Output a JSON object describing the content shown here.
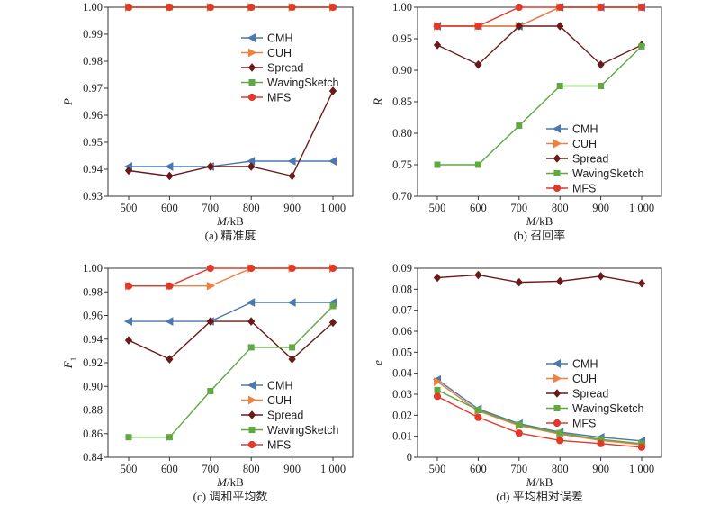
{
  "chart_data": [
    {
      "type": "line",
      "caption": "(a) 精准度",
      "xlabel": "M/kB",
      "ylabel": "P",
      "x": [
        "500",
        "600",
        "700",
        "800",
        "900",
        "1 000"
      ],
      "ylim": [
        0.93,
        1.0
      ],
      "yticks": [
        "0.93",
        "0.94",
        "0.95",
        "0.96",
        "0.97",
        "0.98",
        "0.99",
        "1.00"
      ],
      "grid": false,
      "legend_position": "center-right",
      "series": [
        {
          "name": "CMH",
          "color": "#4a78b0",
          "marker": "triangle-left",
          "values": [
            0.941,
            0.941,
            0.941,
            0.943,
            0.943,
            0.943
          ]
        },
        {
          "name": "CUH",
          "color": "#f08040",
          "marker": "triangle-right",
          "values": [
            1.0,
            1.0,
            1.0,
            1.0,
            1.0,
            1.0
          ]
        },
        {
          "name": "Spread",
          "color": "#6b1a1a",
          "marker": "diamond",
          "values": [
            0.9395,
            0.9375,
            0.941,
            0.941,
            0.9375,
            0.969
          ]
        },
        {
          "name": "WavingSketch",
          "color": "#60a840",
          "marker": "square",
          "values": [
            1.0,
            1.0,
            1.0,
            1.0,
            1.0,
            1.0
          ]
        },
        {
          "name": "MFS",
          "color": "#e03a2a",
          "marker": "circle",
          "values": [
            1.0,
            1.0,
            1.0,
            1.0,
            1.0,
            1.0
          ]
        }
      ]
    },
    {
      "type": "line",
      "caption": "(b) 召回率",
      "xlabel": "M/kB",
      "ylabel": "R",
      "x": [
        "500",
        "600",
        "700",
        "800",
        "900",
        "1 000"
      ],
      "ylim": [
        0.7,
        1.0
      ],
      "yticks": [
        "0.70",
        "0.75",
        "0.80",
        "0.85",
        "0.90",
        "0.95",
        "1.00"
      ],
      "grid": false,
      "legend_position": "bottom-right",
      "series": [
        {
          "name": "CMH",
          "color": "#4a78b0",
          "marker": "triangle-left",
          "values": [
            0.97,
            0.97,
            0.97,
            1.0,
            1.0,
            1.0
          ]
        },
        {
          "name": "CUH",
          "color": "#f08040",
          "marker": "triangle-right",
          "values": [
            0.97,
            0.97,
            0.97,
            1.0,
            1.0,
            1.0
          ]
        },
        {
          "name": "Spread",
          "color": "#6b1a1a",
          "marker": "diamond",
          "values": [
            0.94,
            0.909,
            0.97,
            0.97,
            0.909,
            0.94
          ]
        },
        {
          "name": "WavingSketch",
          "color": "#60a840",
          "marker": "square",
          "values": [
            0.75,
            0.75,
            0.812,
            0.875,
            0.875,
            0.938
          ]
        },
        {
          "name": "MFS",
          "color": "#e03a2a",
          "marker": "circle",
          "values": [
            0.97,
            0.97,
            1.0,
            1.0,
            1.0,
            1.0
          ]
        }
      ]
    },
    {
      "type": "line",
      "caption": "(c) 调和平均数",
      "xlabel": "M/kB",
      "ylabel": "F1",
      "x": [
        "500",
        "600",
        "700",
        "800",
        "900",
        "1 000"
      ],
      "ylim": [
        0.84,
        1.0
      ],
      "yticks": [
        "0.84",
        "0.86",
        "0.88",
        "0.90",
        "0.92",
        "0.94",
        "0.96",
        "0.98",
        "1.00"
      ],
      "grid": false,
      "legend_position": "bottom-right",
      "series": [
        {
          "name": "CMH",
          "color": "#4a78b0",
          "marker": "triangle-left",
          "values": [
            0.955,
            0.955,
            0.955,
            0.971,
            0.971,
            0.971
          ]
        },
        {
          "name": "CUH",
          "color": "#f08040",
          "marker": "triangle-right",
          "values": [
            0.985,
            0.985,
            0.985,
            1.0,
            1.0,
            1.0
          ]
        },
        {
          "name": "Spread",
          "color": "#6b1a1a",
          "marker": "diamond",
          "values": [
            0.939,
            0.923,
            0.955,
            0.955,
            0.923,
            0.954
          ]
        },
        {
          "name": "WavingSketch",
          "color": "#60a840",
          "marker": "square",
          "values": [
            0.857,
            0.857,
            0.896,
            0.933,
            0.933,
            0.968
          ]
        },
        {
          "name": "MFS",
          "color": "#e03a2a",
          "marker": "circle",
          "values": [
            0.985,
            0.985,
            1.0,
            1.0,
            1.0,
            1.0
          ]
        }
      ]
    },
    {
      "type": "line",
      "caption": "(d) 平均相对误差",
      "xlabel": "M/kB",
      "ylabel": "e",
      "x": [
        "500",
        "600",
        "700",
        "800",
        "900",
        "1 000"
      ],
      "ylim": [
        0,
        0.09
      ],
      "yticks": [
        "0",
        "0.01",
        "0.02",
        "0.03",
        "0.04",
        "0.05",
        "0.06",
        "0.07",
        "0.08",
        "0.09"
      ],
      "grid": false,
      "legend_position": "center-right",
      "series": [
        {
          "name": "CMH",
          "color": "#4a78b0",
          "marker": "triangle-left",
          "values": [
            0.037,
            0.023,
            0.016,
            0.012,
            0.0095,
            0.0078
          ]
        },
        {
          "name": "CUH",
          "color": "#f08040",
          "marker": "triangle-right",
          "values": [
            0.036,
            0.022,
            0.015,
            0.011,
            0.008,
            0.006
          ]
        },
        {
          "name": "Spread",
          "color": "#6b1a1a",
          "marker": "diamond",
          "values": [
            0.0855,
            0.0868,
            0.0833,
            0.0838,
            0.0862,
            0.0828
          ]
        },
        {
          "name": "WavingSketch",
          "color": "#60a840",
          "marker": "square",
          "values": [
            0.032,
            0.0225,
            0.0155,
            0.0115,
            0.0085,
            0.0065
          ]
        },
        {
          "name": "MFS",
          "color": "#e03a2a",
          "marker": "circle",
          "values": [
            0.029,
            0.019,
            0.0115,
            0.008,
            0.0065,
            0.0048
          ]
        }
      ]
    }
  ]
}
